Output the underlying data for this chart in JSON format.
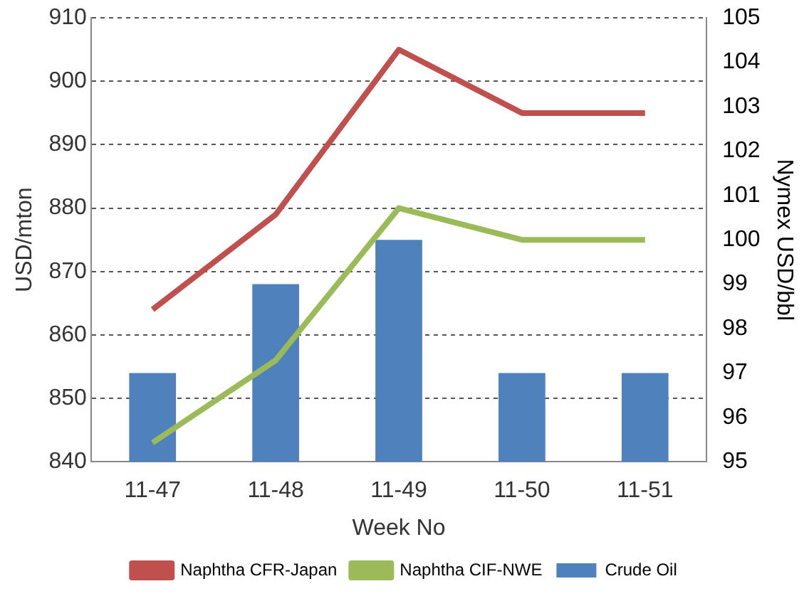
{
  "chart_data": {
    "type": "line",
    "xlabel": "Week No",
    "ylabel": "USD/mton",
    "y2label": "Nymex USD/bbl",
    "categories": [
      "11-47",
      "11-48",
      "11-49",
      "11-50",
      "11-51"
    ],
    "series": [
      {
        "name": "Naphtha CFR-Japan",
        "color": "#c0504d",
        "values": [
          864,
          879,
          905,
          895,
          895
        ]
      },
      {
        "name": "Naphtha CIF-NWE",
        "color": "#9bbb59",
        "values": [
          843,
          856,
          880,
          875,
          875
        ]
      },
      {
        "name": "Crude Oil",
        "type": "bar",
        "axis": "y2",
        "color": "#4f81bd",
        "values": [
          97,
          99,
          100,
          97,
          97
        ]
      }
    ],
    "ylim": [
      840,
      910
    ],
    "yticks": [
      840,
      850,
      860,
      870,
      880,
      890,
      900,
      910
    ],
    "y2lim": [
      95,
      105
    ],
    "y2ticks": [
      95,
      96,
      97,
      98,
      99,
      100,
      101,
      102,
      103,
      104,
      105
    ],
    "grid": "y",
    "legend": "bottom",
    "marker": "none",
    "line_style": "solid"
  }
}
